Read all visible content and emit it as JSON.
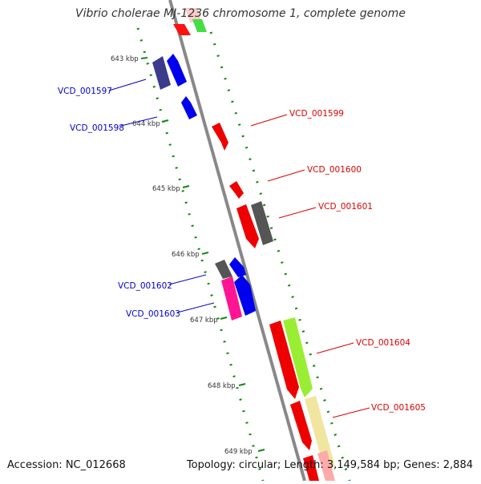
{
  "title": "Vibrio cholerae MJ-1236 chromosome 1, complete genome",
  "footer": {
    "accession": "Accession: NC_012668",
    "stats": "Topology: circular; Length: 3,149,584 bp; Genes: 2,884"
  },
  "colors": {
    "forward_label": "#dd0000",
    "reverse_label": "#0000cc",
    "backbone": "#888888",
    "tick_dots": "#118811"
  },
  "ticks": [
    "643 kbp",
    "644 kbp",
    "645 kbp",
    "646 kbp",
    "647 kbp",
    "648 kbp",
    "649 kbp"
  ],
  "labels": {
    "reverse": [
      "VCD_001597",
      "VCD_001598",
      "VCD_001602",
      "VCD_001603"
    ],
    "forward": [
      "VCD_001599",
      "VCD_001600",
      "VCD_001601",
      "VCD_001604",
      "VCD_001605"
    ]
  }
}
